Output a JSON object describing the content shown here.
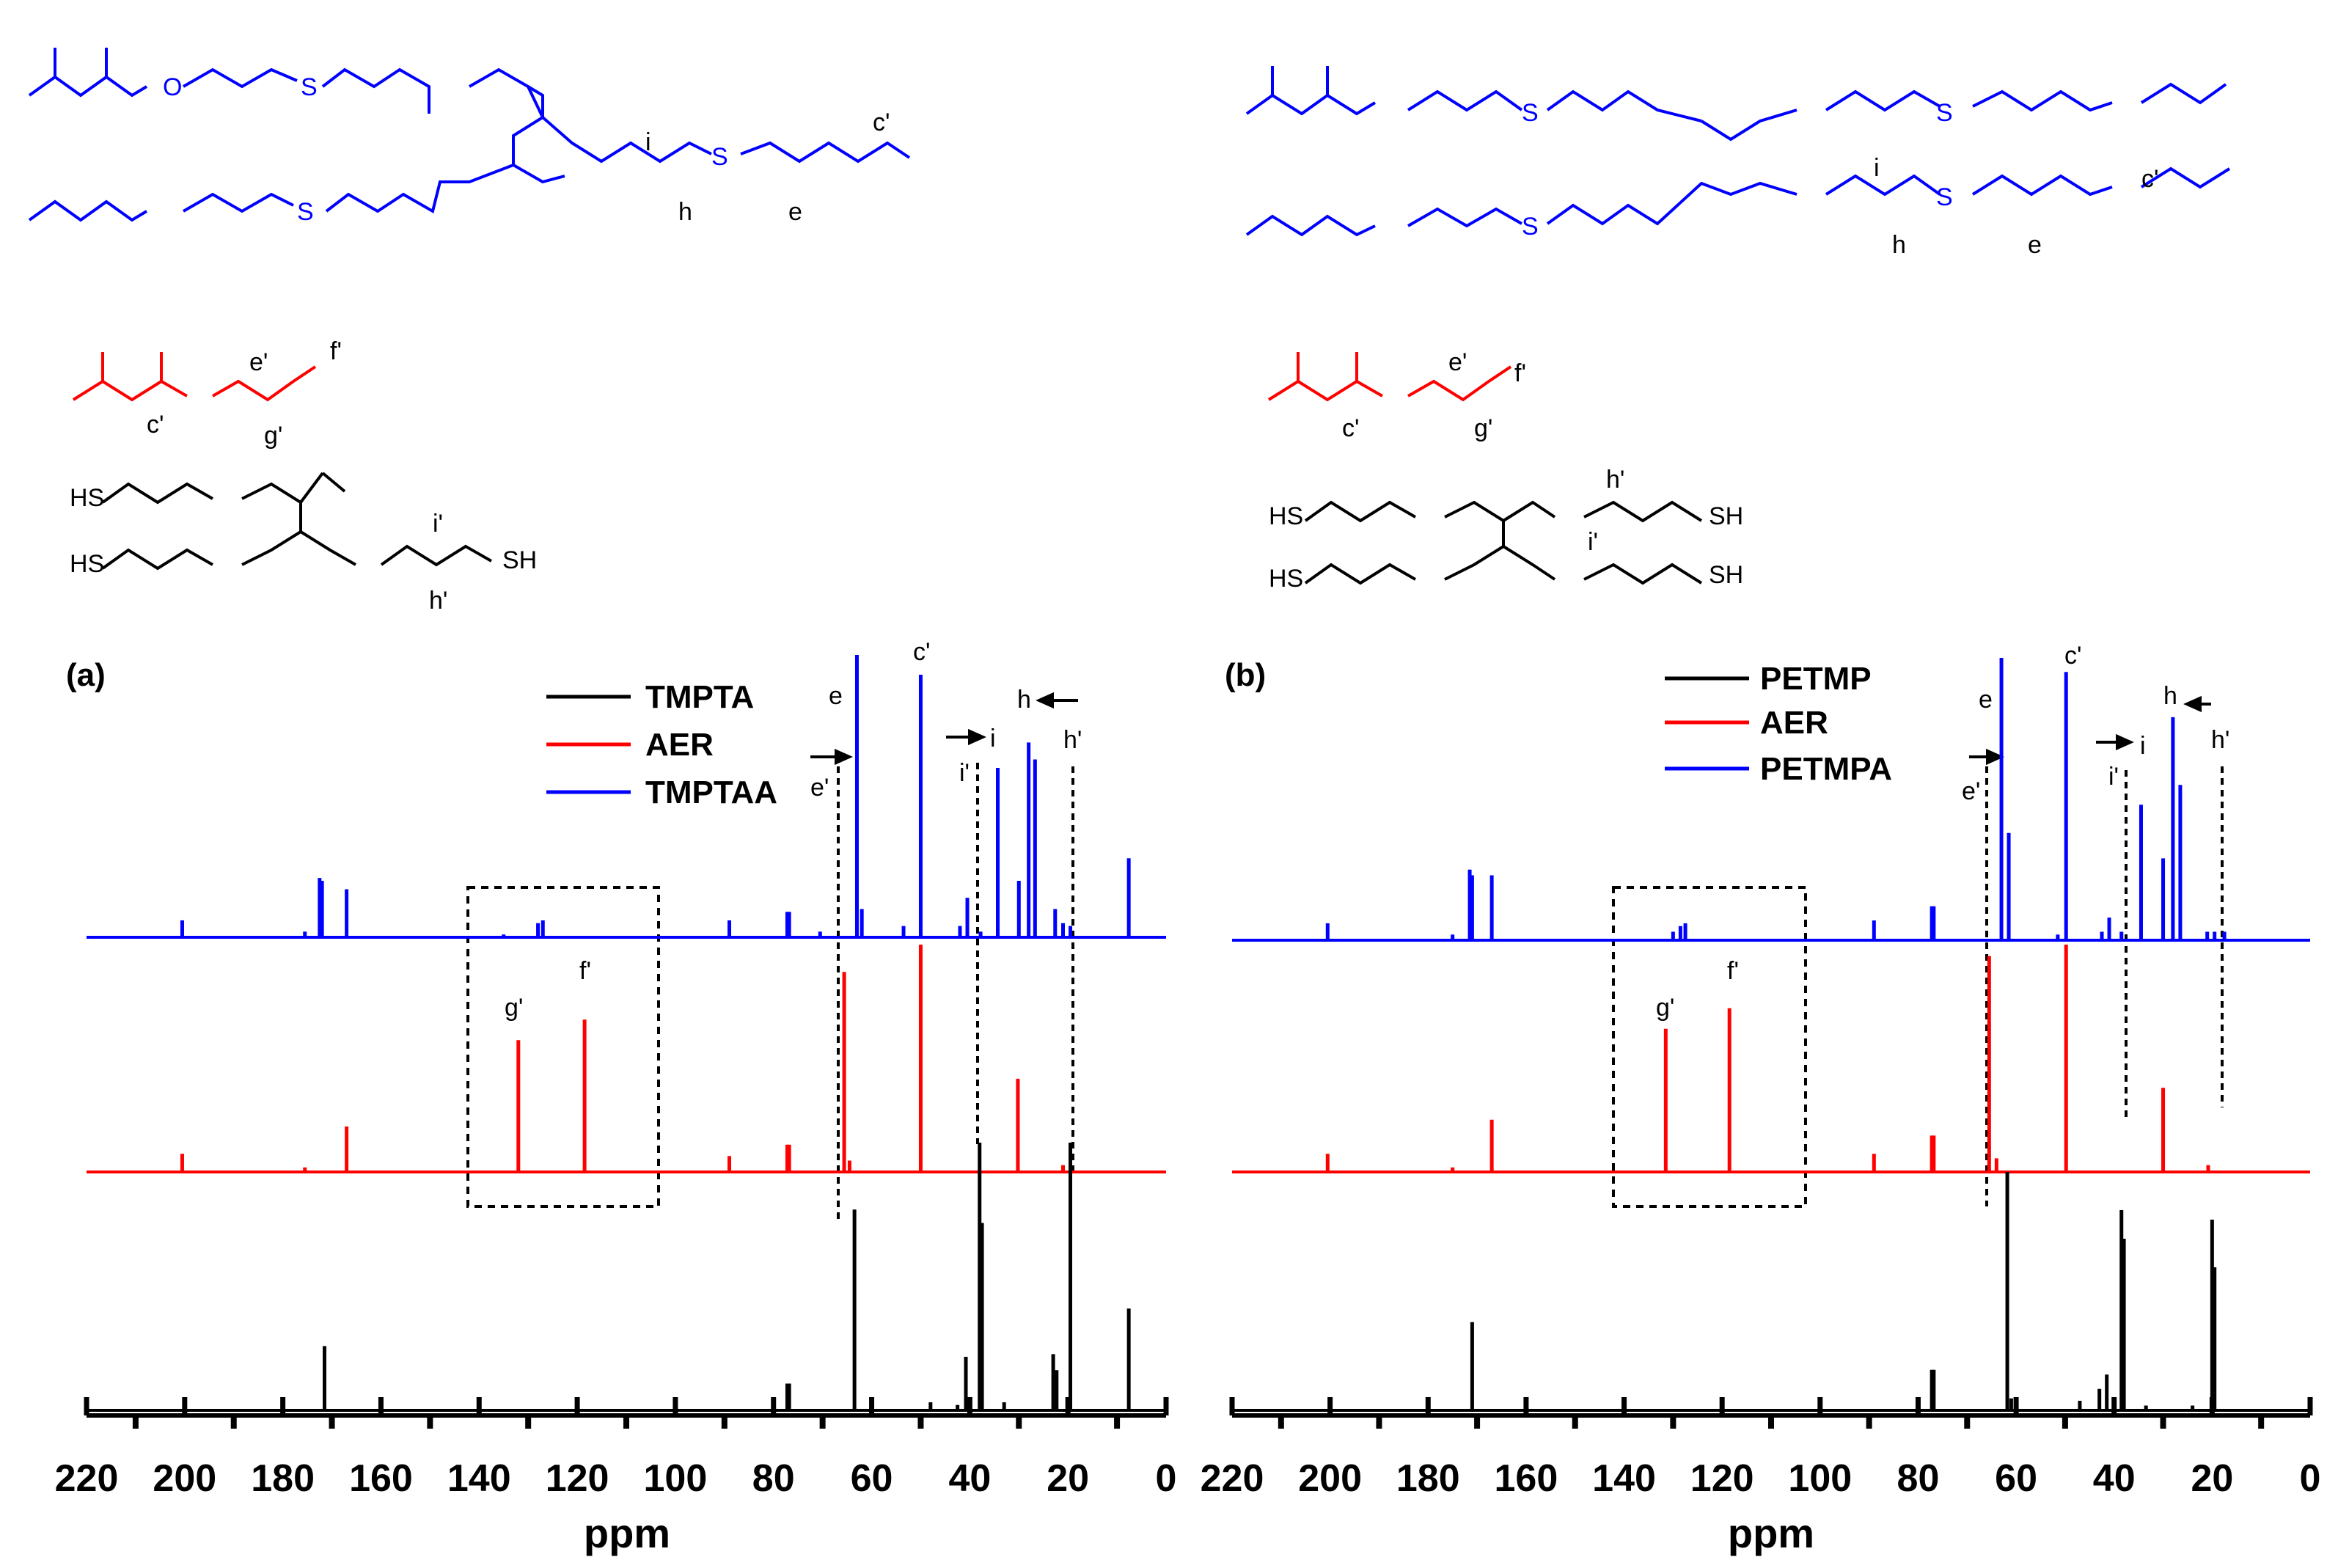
{
  "colors": {
    "tmpta": "#000000",
    "aer": "#ff0000",
    "product": "#0000ff"
  },
  "chart_data": [
    {
      "type": "line",
      "panel_label": "(a)",
      "xlabel": "ppm",
      "xlim": [
        220,
        0
      ],
      "x_reversed": true,
      "xticks": [
        220,
        200,
        180,
        160,
        140,
        120,
        100,
        80,
        60,
        40,
        20,
        0
      ],
      "grid": false,
      "legend": [
        "TMPTA",
        "AER",
        "TMPTAA"
      ],
      "legend_position": "top-right",
      "series": [
        {
          "name": "TMPTAA",
          "color": "#0000ff",
          "peaks": [
            [
              200.5,
              0.06
            ],
            [
              175.5,
              0.02
            ],
            [
              172.5,
              0.21
            ],
            [
              172,
              0.2
            ],
            [
              167,
              0.17
            ],
            [
              135,
              0.01
            ],
            [
              128,
              0.05
            ],
            [
              127,
              0.06
            ],
            [
              89,
              0.06
            ],
            [
              77.2,
              0.09
            ],
            [
              76.8,
              0.09
            ],
            [
              70.5,
              0.02
            ],
            [
              63,
              1.0
            ],
            [
              62,
              0.1
            ],
            [
              53.5,
              0.04
            ],
            [
              50,
              0.93
            ],
            [
              42,
              0.04
            ],
            [
              40.5,
              0.14
            ],
            [
              37.8,
              0.02
            ],
            [
              34.3,
              0.6
            ],
            [
              30,
              0.2
            ],
            [
              28,
              0.69
            ],
            [
              26.7,
              0.63
            ],
            [
              22.6,
              0.1
            ],
            [
              21,
              0.05
            ],
            [
              19.5,
              0.04
            ],
            [
              7.6,
              0.28
            ]
          ]
        },
        {
          "name": "AER",
          "color": "#ff0000",
          "peaks": [
            [
              200.5,
              0.08
            ],
            [
              175.5,
              0.02
            ],
            [
              167,
              0.2
            ],
            [
              132,
              0.58
            ],
            [
              118.5,
              0.67
            ],
            [
              89,
              0.07
            ],
            [
              77.2,
              0.12
            ],
            [
              76.8,
              0.12
            ],
            [
              65.6,
              0.88
            ],
            [
              64.5,
              0.05
            ],
            [
              50,
              1.0
            ],
            [
              30.2,
              0.41
            ],
            [
              21,
              0.03
            ]
          ]
        },
        {
          "name": "TMPTA",
          "color": "#000000",
          "peaks": [
            [
              171.5,
              0.24
            ],
            [
              77.2,
              0.1
            ],
            [
              76.8,
              0.1
            ],
            [
              63.5,
              0.75
            ],
            [
              48,
              0.03
            ],
            [
              42.5,
              0.02
            ],
            [
              40.8,
              0.2
            ],
            [
              38,
              1.0
            ],
            [
              37.5,
              0.7
            ],
            [
              33,
              0.03
            ],
            [
              23,
              0.21
            ],
            [
              22.3,
              0.15
            ],
            [
              19.5,
              1.0
            ],
            [
              7.6,
              0.38
            ]
          ]
        }
      ],
      "annotations": [
        "e",
        "c'",
        "h",
        "i",
        "e'",
        "i'",
        "h'",
        "g'",
        "f'"
      ]
    },
    {
      "type": "line",
      "panel_label": "(b)",
      "xlabel": "ppm",
      "xlim": [
        220,
        0
      ],
      "x_reversed": true,
      "xticks": [
        220,
        200,
        180,
        160,
        140,
        120,
        100,
        80,
        60,
        40,
        20,
        0
      ],
      "grid": false,
      "legend": [
        "PETMP",
        "AER",
        "PETMPA"
      ],
      "legend_position": "top-right",
      "series": [
        {
          "name": "PETMPA",
          "color": "#0000ff",
          "peaks": [
            [
              200.5,
              0.06
            ],
            [
              175,
              0.02
            ],
            [
              171.5,
              0.25
            ],
            [
              171,
              0.23
            ],
            [
              167,
              0.23
            ],
            [
              130,
              0.03
            ],
            [
              128.5,
              0.05
            ],
            [
              127.5,
              0.06
            ],
            [
              89,
              0.07
            ],
            [
              77.2,
              0.12
            ],
            [
              76.8,
              0.12
            ],
            [
              63,
              1.0
            ],
            [
              61.5,
              0.38
            ],
            [
              51.5,
              0.02
            ],
            [
              49.8,
              0.95
            ],
            [
              42.5,
              0.03
            ],
            [
              41,
              0.08
            ],
            [
              38.5,
              0.03
            ],
            [
              34.5,
              0.48
            ],
            [
              30,
              0.29
            ],
            [
              28,
              0.79
            ],
            [
              26.5,
              0.55
            ],
            [
              21,
              0.03
            ],
            [
              19.5,
              0.03
            ],
            [
              17.5,
              0.03
            ]
          ]
        },
        {
          "name": "AER",
          "color": "#ff0000",
          "peaks": [
            [
              200.5,
              0.08
            ],
            [
              175,
              0.02
            ],
            [
              167,
              0.23
            ],
            [
              131.5,
              0.63
            ],
            [
              118.5,
              0.72
            ],
            [
              89,
              0.08
            ],
            [
              77.2,
              0.16
            ],
            [
              76.8,
              0.16
            ],
            [
              65.5,
              0.95
            ],
            [
              64,
              0.06
            ],
            [
              49.8,
              1.0
            ],
            [
              30,
              0.37
            ],
            [
              20.8,
              0.03
            ]
          ]
        },
        {
          "name": "PETMP",
          "color": "#000000",
          "peaks": [
            [
              171,
              0.37
            ],
            [
              77.2,
              0.17
            ],
            [
              76.8,
              0.17
            ],
            [
              61.8,
              1.0
            ],
            [
              61,
              0.05
            ],
            [
              47,
              0.04
            ],
            [
              43,
              0.09
            ],
            [
              41.5,
              0.15
            ],
            [
              38.5,
              0.84
            ],
            [
              38,
              0.72
            ],
            [
              33.5,
              0.02
            ],
            [
              24,
              0.02
            ],
            [
              20,
              0.8
            ],
            [
              19.5,
              0.6
            ]
          ]
        }
      ],
      "annotations": [
        "e",
        "c'",
        "h",
        "i",
        "e'",
        "i'",
        "h'",
        "g'",
        "f'"
      ]
    }
  ],
  "structure_labels": {
    "tmptaa": [
      "i",
      "h",
      "e",
      "c'"
    ],
    "aer": [
      "e'",
      "f'",
      "c'",
      "g'"
    ],
    "tmpta": [
      "i'",
      "h'"
    ],
    "petmpa": [
      "i",
      "h",
      "e",
      "c'"
    ],
    "petmp": [
      "h'",
      "i'"
    ]
  },
  "atom_labels": {
    "oxygen": "O",
    "sulfur": "S",
    "thiol": "SH",
    "thiol_left": "HS"
  }
}
